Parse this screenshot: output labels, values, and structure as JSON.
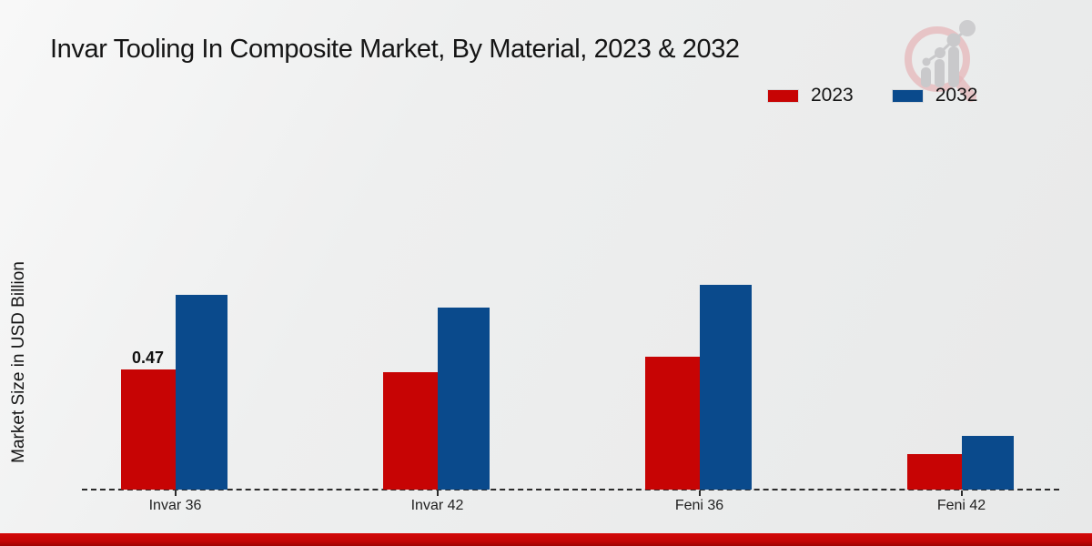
{
  "title": "Invar Tooling In Composite Market, By Material, 2023 & 2032",
  "legend": [
    {
      "label": "2023",
      "color": "#c70404"
    },
    {
      "label": "2032",
      "color": "#0a4a8c"
    }
  ],
  "watermark": {
    "name": "market-research-magnifier-logo"
  },
  "chart_data": {
    "type": "bar",
    "categories": [
      "Invar 36",
      "Invar 42",
      "Feni 36",
      "Feni 42"
    ],
    "series": [
      {
        "name": "2023",
        "color": "#c70404",
        "values": [
          0.47,
          0.46,
          0.52,
          0.14
        ],
        "labels": [
          "0.47",
          "",
          "",
          ""
        ]
      },
      {
        "name": "2032",
        "color": "#0a4a8c",
        "values": [
          0.76,
          0.71,
          0.8,
          0.21
        ],
        "labels": [
          "",
          "",
          "",
          ""
        ]
      }
    ],
    "title": "Invar Tooling In Composite Market, By Material, 2023 & 2032",
    "xlabel": "",
    "ylabel": "Market Size in USD Billion",
    "ylim": [
      0,
      1.45
    ],
    "grid": false,
    "legend_position": "top-right",
    "baseline_style": "dashed"
  }
}
